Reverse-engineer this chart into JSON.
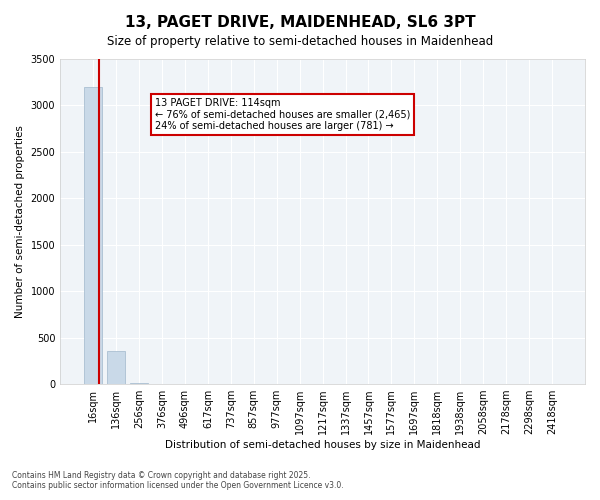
{
  "title1": "13, PAGET DRIVE, MAIDENHEAD, SL6 3PT",
  "title2": "Size of property relative to semi-detached houses in Maidenhead",
  "xlabel": "Distribution of semi-detached houses by size in Maidenhead",
  "ylabel": "Number of semi-detached properties",
  "categories": [
    "16sqm",
    "136sqm",
    "256sqm",
    "376sqm",
    "496sqm",
    "617sqm",
    "737sqm",
    "857sqm",
    "977sqm",
    "1097sqm",
    "1217sqm",
    "1337sqm",
    "1457sqm",
    "1577sqm",
    "1697sqm",
    "1818sqm",
    "1938sqm",
    "2058sqm",
    "2178sqm",
    "2298sqm",
    "2418sqm"
  ],
  "values": [
    3200,
    350,
    5,
    0,
    0,
    0,
    0,
    0,
    0,
    0,
    0,
    0,
    0,
    0,
    0,
    0,
    0,
    0,
    0,
    0,
    0
  ],
  "bar_color": "#c9d9e8",
  "bar_edge_color": "#a0b8cc",
  "ylim": [
    0,
    3500
  ],
  "yticks": [
    0,
    500,
    1000,
    1500,
    2000,
    2500,
    3000,
    3500
  ],
  "property_line_x": 0.72,
  "property_line_color": "#cc0000",
  "annotation_title": "13 PAGET DRIVE: 114sqm",
  "annotation_line1": "← 76% of semi-detached houses are smaller (2,465)",
  "annotation_line2": "24% of semi-detached houses are larger (781) →",
  "annotation_box_color": "#cc0000",
  "background_color": "#f0f4f8",
  "footer_line1": "Contains HM Land Registry data © Crown copyright and database right 2025.",
  "footer_line2": "Contains public sector information licensed under the Open Government Licence v3.0."
}
